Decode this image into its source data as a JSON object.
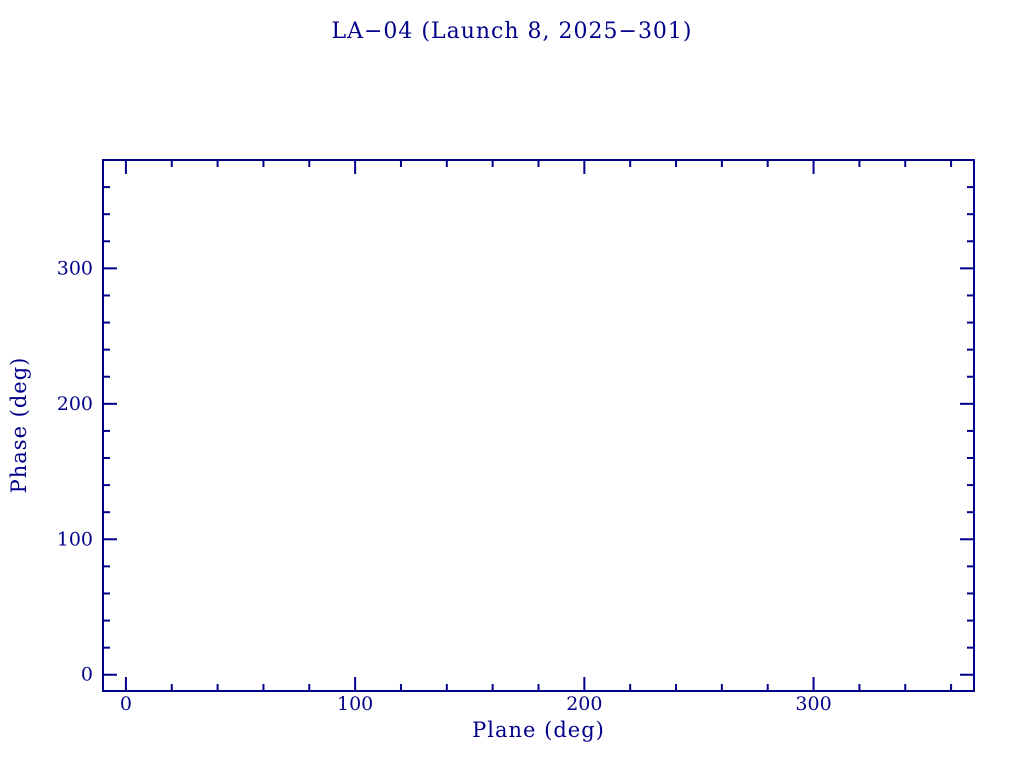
{
  "page": {
    "background_color": "#ffffff"
  },
  "chart_data": {
    "type": "scatter",
    "title": "LA−04 (Launch 8, 2025−301)",
    "xlabel": "Plane (deg)",
    "ylabel": "Phase (deg)",
    "xlim": [
      -10,
      370
    ],
    "ylim": [
      -12,
      380
    ],
    "x_major_ticks": [
      0,
      100,
      200,
      300
    ],
    "y_major_ticks": [
      0,
      100,
      200,
      300
    ],
    "x_tick_labels": [
      "0",
      "100",
      "200",
      "300"
    ],
    "y_tick_labels": [
      "0",
      "100",
      "200",
      "300"
    ],
    "minor_tick_step": 20,
    "minor_tick_min": 0,
    "minor_tick_max": 360,
    "tick_style": "inward, mirrored on all four frame edges",
    "grid": false,
    "legend": null,
    "series": [],
    "points": [],
    "axis_color": "#00008B",
    "text_color": "#00008B"
  }
}
